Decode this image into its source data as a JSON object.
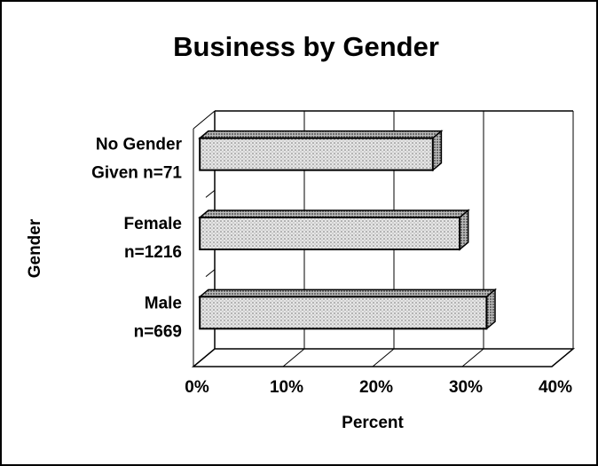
{
  "chart_data": {
    "type": "bar3d_horizontal",
    "title": "Business by Gender",
    "x_label": "Percent",
    "y_label": "Gender",
    "categories": [
      [
        "No Gender",
        "Given n=71"
      ],
      [
        "Female",
        "n=1216"
      ],
      [
        "Male",
        "n=669"
      ]
    ],
    "values": [
      26,
      29,
      32
    ],
    "xlim": [
      0,
      40
    ],
    "xticks": [
      {
        "value": 0,
        "label": "0%"
      },
      {
        "value": 10,
        "label": "10%"
      },
      {
        "value": 20,
        "label": "20%"
      },
      {
        "value": 30,
        "label": "30%"
      },
      {
        "value": 40,
        "label": "40%"
      }
    ],
    "grid": true,
    "color": "#d8d8d8"
  }
}
